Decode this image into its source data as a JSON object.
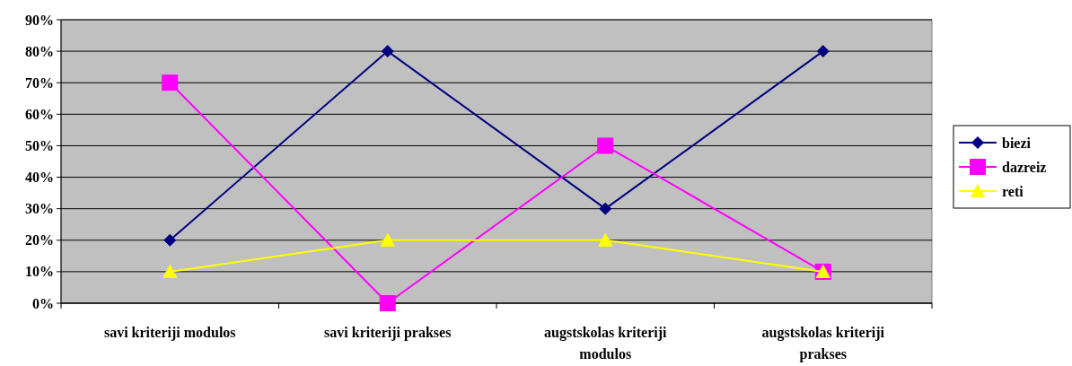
{
  "chart_data": {
    "type": "line",
    "categories": [
      "savi kriteriji modulos",
      "savi kriteriji prakses",
      "augstskolas kriteriji modulos",
      "augstskolas kriteriji prakses"
    ],
    "series": [
      {
        "name": "biezi",
        "color": "#000080",
        "marker": "diamond",
        "values": [
          20,
          80,
          30,
          80
        ]
      },
      {
        "name": "dazreiz",
        "color": "#ff00ff",
        "marker": "square",
        "values": [
          70,
          0,
          50,
          10
        ]
      },
      {
        "name": "reti",
        "color": "#ffff00",
        "marker": "triangle",
        "values": [
          10,
          20,
          20,
          10
        ]
      }
    ],
    "ylim": [
      0,
      90
    ],
    "yticks": [
      {
        "value": 0,
        "label": "0%"
      },
      {
        "value": 10,
        "label": "10%"
      },
      {
        "value": 20,
        "label": "20%"
      },
      {
        "value": 30,
        "label": "30%"
      },
      {
        "value": 40,
        "label": "40%"
      },
      {
        "value": 50,
        "label": "50%"
      },
      {
        "value": 60,
        "label": "60%"
      },
      {
        "value": 70,
        "label": "70%"
      },
      {
        "value": 80,
        "label": "80%"
      },
      {
        "value": 90,
        "label": "90%"
      }
    ],
    "grid": "y",
    "legend": "right"
  }
}
